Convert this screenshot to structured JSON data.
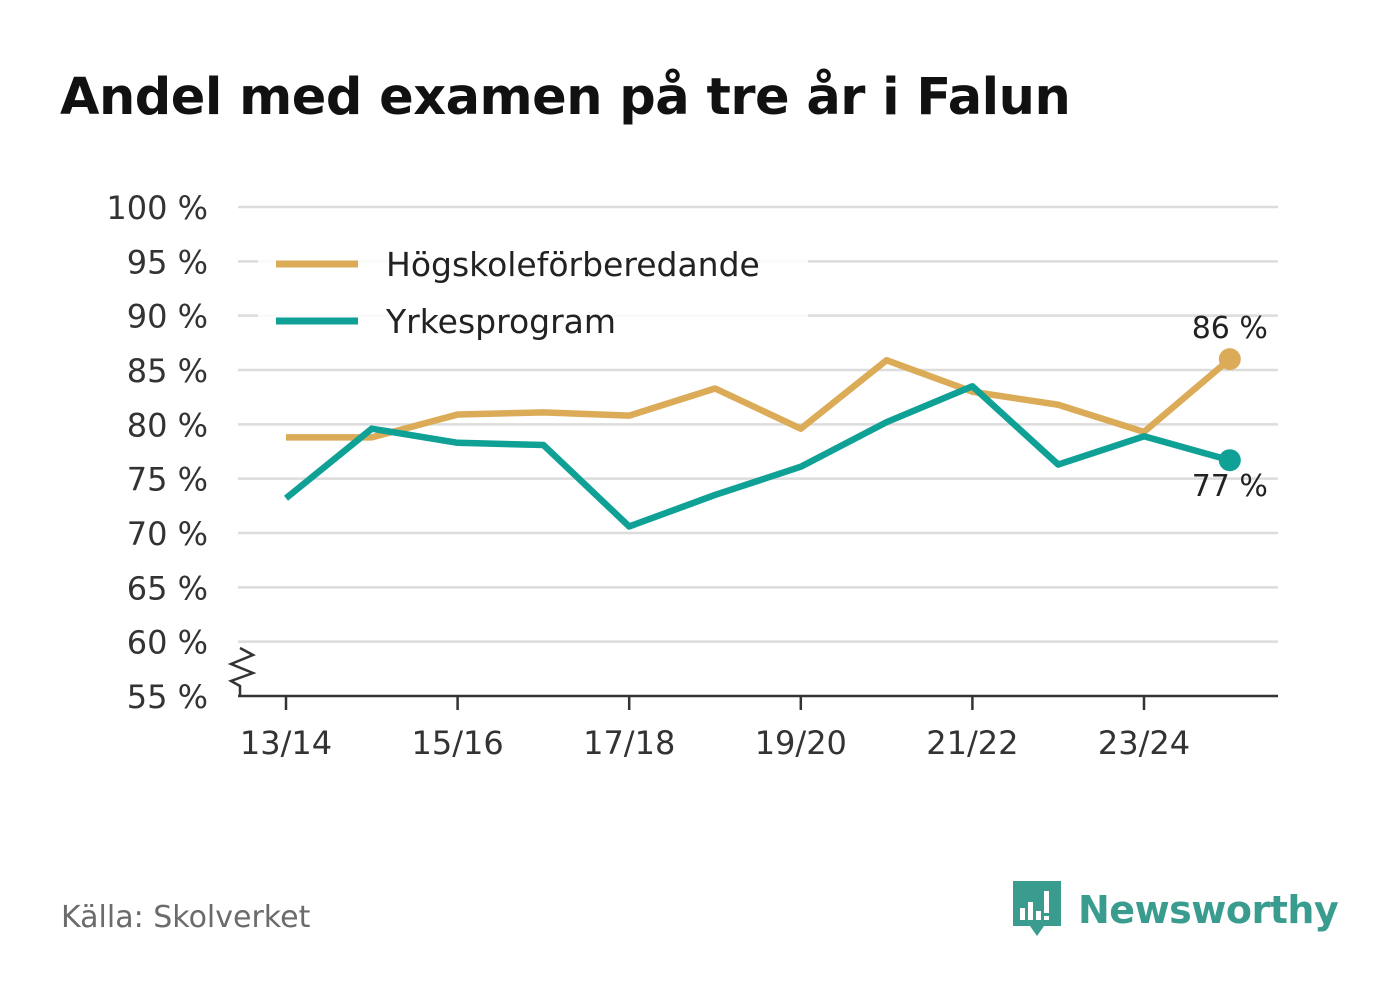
{
  "title": "Andel med examen på tre år i Falun",
  "source": "Källa: Skolverket",
  "brand": {
    "name": "Newsworthy",
    "icon": "bar-chart-speech-bubble-icon",
    "color": "#3a9c8f"
  },
  "chart_data": {
    "type": "line",
    "x": [
      "13/14",
      "14/15",
      "15/16",
      "16/17",
      "17/18",
      "18/19",
      "19/20",
      "20/21",
      "21/22",
      "22/23",
      "23/24",
      "24/25"
    ],
    "x_tick_labels": [
      "13/14",
      "15/16",
      "17/18",
      "19/20",
      "21/22",
      "23/24"
    ],
    "y_tick_labels": [
      "100 %",
      "95 %",
      "90 %",
      "85 %",
      "80 %",
      "75 %",
      "70 %",
      "65 %",
      "60 %",
      "55 %"
    ],
    "ylim": [
      55,
      100
    ],
    "y_ticks": [
      100,
      95,
      90,
      85,
      80,
      75,
      70,
      65,
      60,
      55
    ],
    "axis_break": true,
    "grid": true,
    "legend_position": "top-left",
    "series": [
      {
        "name": "Högskoleförberedande",
        "color": "#dbab58",
        "values": [
          78.8,
          78.8,
          80.9,
          81.1,
          80.8,
          83.3,
          79.6,
          85.9,
          83.0,
          81.8,
          79.3,
          86.0
        ],
        "end_label": "86 %"
      },
      {
        "name": "Yrkesprogram",
        "color": "#0fa195",
        "values": [
          73.2,
          79.6,
          78.3,
          78.1,
          70.6,
          73.5,
          76.1,
          80.2,
          83.5,
          76.3,
          78.9,
          76.7
        ],
        "end_label": "77 %"
      }
    ]
  }
}
